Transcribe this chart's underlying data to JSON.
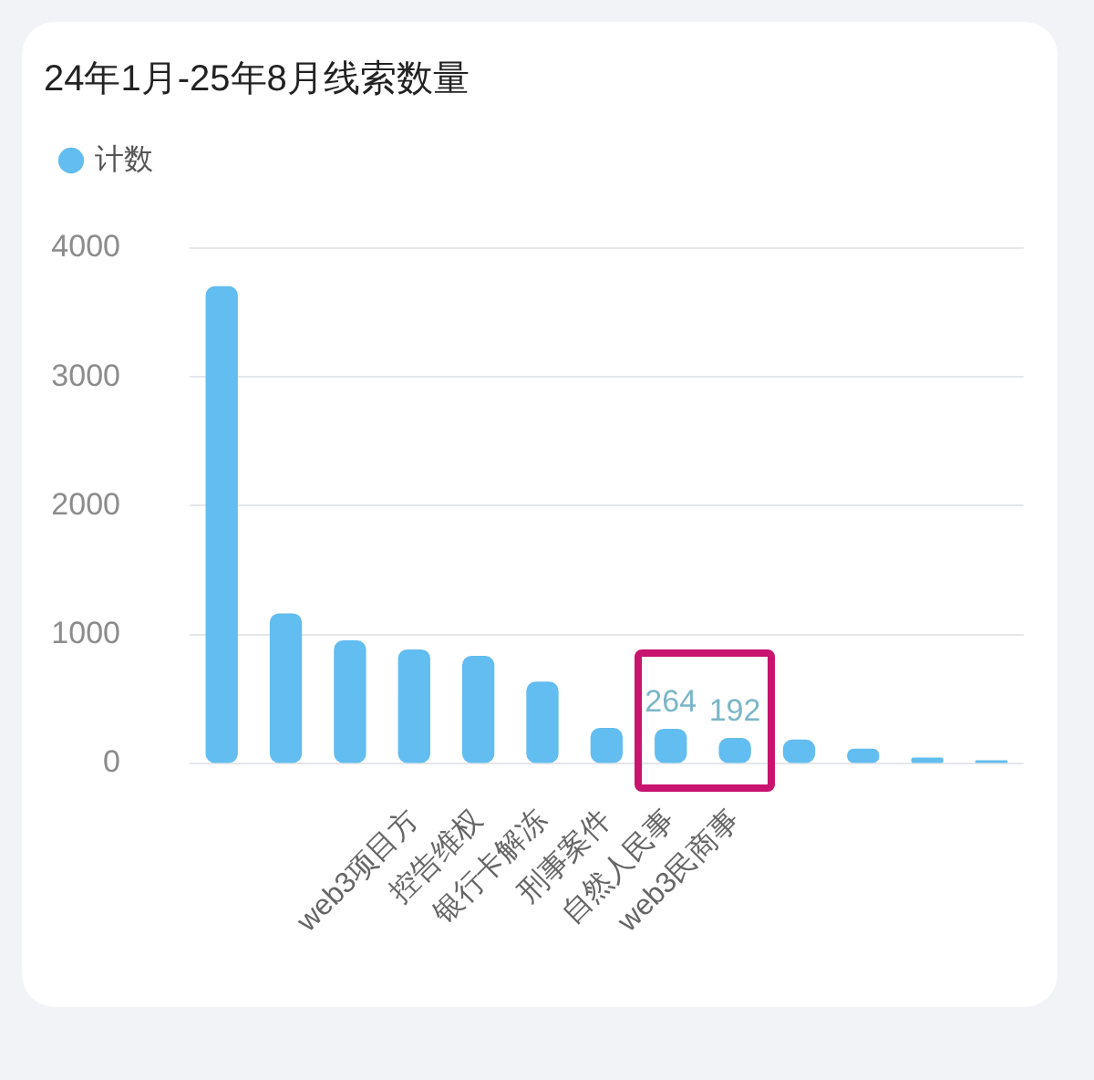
{
  "chart_data": {
    "type": "bar",
    "title": "24年1月-25年8月线索数量",
    "categories": [
      null,
      null,
      null,
      "web3项目方",
      "控告维权",
      "银行卡解冻",
      "刑事案件",
      "自然人民事",
      "web3民商事",
      null,
      null,
      null,
      null
    ],
    "series": [
      {
        "name": "计数",
        "color": "#62bdf0",
        "values": [
          3700,
          1160,
          950,
          880,
          830,
          630,
          270,
          264,
          192,
          180,
          110,
          40,
          20
        ],
        "value_labels": [
          null,
          null,
          null,
          null,
          null,
          null,
          null,
          "264",
          "192",
          null,
          null,
          null,
          null
        ]
      }
    ],
    "ylim": [
      0,
      4000
    ],
    "yticks": [
      0,
      1000,
      2000,
      3000,
      4000
    ],
    "grid": "y",
    "legend": "top left"
  }
}
